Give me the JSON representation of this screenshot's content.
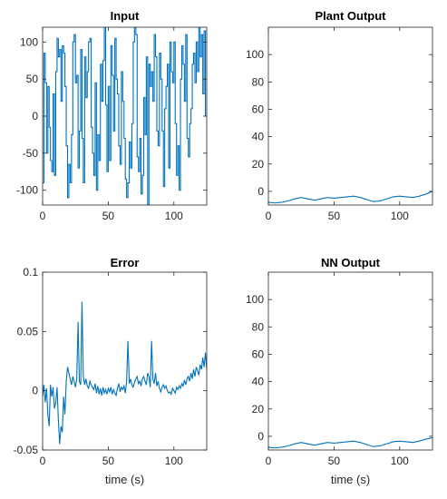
{
  "chart_data": [
    {
      "type": "line",
      "title": "Input",
      "xlabel": "",
      "ylabel": "",
      "xlim": [
        0,
        125
      ],
      "ylim": [
        -120,
        120
      ],
      "xticks": [
        "0",
        "50",
        "100"
      ],
      "xtick_values": [
        0,
        50,
        100
      ],
      "yticks": [
        "-100",
        "-50",
        "0",
        "50",
        "100"
      ],
      "ytick_values": [
        -100,
        -50,
        0,
        50,
        100
      ],
      "line_color": "#0072BD",
      "step": true,
      "series": [
        {
          "x": [
            0,
            1,
            2,
            3,
            4,
            5,
            6,
            7,
            8,
            9,
            10,
            11,
            12,
            13,
            14,
            15,
            16,
            17,
            18,
            19,
            20,
            21,
            22,
            23,
            24,
            25,
            26,
            27,
            28,
            29,
            30,
            31,
            32,
            33,
            34,
            35,
            36,
            37,
            38,
            39,
            40,
            41,
            42,
            43,
            44,
            45,
            46,
            47,
            48,
            49,
            50,
            51,
            52,
            53,
            54,
            55,
            56,
            57,
            58,
            59,
            60,
            61,
            62,
            63,
            64,
            65,
            66,
            67,
            68,
            69,
            70,
            71,
            72,
            73,
            74,
            75,
            76,
            77,
            78,
            79,
            80,
            81,
            82,
            83,
            84,
            85,
            86,
            87,
            88,
            89,
            90,
            91,
            92,
            93,
            94,
            95,
            96,
            97,
            98,
            99,
            100,
            101,
            102,
            103,
            104,
            105,
            106,
            107,
            108,
            109,
            110,
            111,
            112,
            113,
            114,
            115,
            116,
            117,
            118,
            119,
            120,
            121,
            122,
            123,
            124
          ],
          "y": [
            -90,
            85,
            45,
            -50,
            40,
            -15,
            -60,
            -75,
            30,
            -80,
            60,
            105,
            80,
            90,
            20,
            95,
            85,
            40,
            -40,
            -110,
            -65,
            -90,
            -25,
            100,
            110,
            45,
            55,
            -70,
            -20,
            90,
            -30,
            -90,
            80,
            25,
            60,
            100,
            105,
            -15,
            -50,
            -80,
            45,
            -100,
            -25,
            -60,
            70,
            20,
            75,
            120,
            15,
            -75,
            40,
            -60,
            95,
            55,
            -20,
            105,
            50,
            30,
            -40,
            -65,
            60,
            20,
            -30,
            -85,
            -110,
            -90,
            -35,
            -70,
            -10,
            100,
            120,
            110,
            -55,
            -75,
            -30,
            -105,
            -80,
            25,
            -25,
            80,
            -120,
            70,
            40,
            60,
            20,
            110,
            80,
            -20,
            -40,
            85,
            50,
            -20,
            -95,
            10,
            40,
            70,
            -70,
            100,
            60,
            45,
            100,
            -10,
            -80,
            -40,
            -100,
            50,
            95,
            70,
            20,
            110,
            -30,
            -55,
            -10,
            10,
            70,
            85,
            45,
            100,
            60,
            120,
            80,
            110,
            30,
            115,
            0
          ]
        }
      ]
    },
    {
      "type": "line",
      "title": "Plant Output",
      "xlabel": "",
      "ylabel": "",
      "xlim": [
        0,
        125
      ],
      "ylim": [
        -10,
        120
      ],
      "xticks": [
        "0",
        "50",
        "100"
      ],
      "xtick_values": [
        0,
        50,
        100
      ],
      "yticks": [
        "0",
        "20",
        "40",
        "60",
        "80",
        "100"
      ],
      "ytick_values": [
        0,
        20,
        40,
        60,
        80,
        100
      ],
      "line_color": "#0072BD",
      "step": false,
      "series": [
        {
          "x": [
            0,
            5,
            10,
            15,
            20,
            25,
            30,
            35,
            40,
            45,
            50,
            55,
            60,
            65,
            70,
            75,
            80,
            85,
            90,
            95,
            100,
            105,
            110,
            115,
            120,
            125
          ],
          "y": [
            -8,
            -8.5,
            -8,
            -7,
            -5.5,
            -4.5,
            -5.5,
            -6.5,
            -5.5,
            -4.5,
            -5,
            -4.5,
            -4,
            -3.5,
            -4.5,
            -6,
            -7.5,
            -7,
            -5.5,
            -4,
            -3.5,
            -4,
            -4.5,
            -3.5,
            -2,
            0
          ]
        }
      ]
    },
    {
      "type": "line",
      "title": "Error",
      "xlabel": "time (s)",
      "ylabel": "",
      "xlim": [
        0,
        125
      ],
      "ylim": [
        -0.05,
        0.1
      ],
      "xticks": [
        "0",
        "50",
        "100"
      ],
      "xtick_values": [
        0,
        50,
        100
      ],
      "yticks": [
        "-0.05",
        "0",
        "0.05",
        "0.1"
      ],
      "ytick_values": [
        -0.05,
        0,
        0.05,
        0.1
      ],
      "line_color": "#0072BD",
      "step": false,
      "series": [
        {
          "x": [
            0,
            1,
            2,
            3,
            4,
            5,
            6,
            7,
            8,
            9,
            10,
            11,
            12,
            13,
            14,
            15,
            16,
            17,
            18,
            19,
            20,
            21,
            22,
            23,
            24,
            25,
            26,
            27,
            28,
            29,
            30,
            31,
            32,
            33,
            34,
            35,
            36,
            37,
            38,
            39,
            40,
            41,
            42,
            43,
            44,
            45,
            46,
            47,
            48,
            49,
            50,
            51,
            52,
            53,
            54,
            55,
            56,
            57,
            58,
            59,
            60,
            61,
            62,
            63,
            64,
            65,
            66,
            67,
            68,
            69,
            70,
            71,
            72,
            73,
            74,
            75,
            76,
            77,
            78,
            79,
            80,
            81,
            82,
            83,
            84,
            85,
            86,
            87,
            88,
            89,
            90,
            91,
            92,
            93,
            94,
            95,
            96,
            97,
            98,
            99,
            100,
            101,
            102,
            103,
            104,
            105,
            106,
            107,
            108,
            109,
            110,
            111,
            112,
            113,
            114,
            115,
            116,
            117,
            118,
            119,
            120,
            121,
            122,
            123,
            124,
            125
          ],
          "y": [
            -0.005,
            0.005,
            -0.01,
            0.002,
            -0.02,
            -0.03,
            0.005,
            -0.005,
            0.003,
            -0.015,
            -0.01,
            0.003,
            -0.025,
            -0.045,
            -0.03,
            -0.035,
            -0.005,
            -0.02,
            0.008,
            0.02,
            0.015,
            0.01,
            0.005,
            0.012,
            0.008,
            0.003,
            0.01,
            0.058,
            0.008,
            0.005,
            0.075,
            0.012,
            0.005,
            0.01,
            0.004,
            0.002,
            0.008,
            0.005,
            0.003,
            0.001,
            0.006,
            -0.002,
            0.004,
            -0.003,
            0.002,
            -0.004,
            0.003,
            -0.002,
            0.001,
            -0.003,
            0.002,
            -0.001,
            0.003,
            -0.003,
            0.001,
            -0.002,
            -0.004,
            0.002,
            0.006,
            -0.001,
            0.003,
            0.001,
            0.004,
            -0.002,
            0.008,
            0.042,
            0.006,
            0.01,
            0.005,
            0.003,
            0.007,
            0.01,
            0.012,
            0.006,
            0.008,
            0.004,
            0.01,
            0.012,
            0.008,
            0.005,
            0.015,
            0.012,
            0.003,
            0.042,
            0.01,
            0.006,
            0.015,
            0.004,
            0.008,
            0.002,
            -0.001,
            0.003,
            0.005,
            0.002,
            0.004,
            0.0,
            -0.002,
            -0.001,
            -0.003,
            0.002,
            0.0,
            -0.002,
            0.003,
            0.001,
            0.004,
            0.002,
            0.006,
            0.004,
            0.009,
            0.005,
            0.01,
            0.012,
            0.008,
            0.015,
            0.01,
            0.018,
            0.012,
            0.02,
            0.017,
            0.013,
            0.022,
            0.018,
            0.028,
            0.02,
            0.032,
            0.018
          ]
        }
      ]
    },
    {
      "type": "line",
      "title": "NN Output",
      "xlabel": "time (s)",
      "ylabel": "",
      "xlim": [
        0,
        125
      ],
      "ylim": [
        -10,
        120
      ],
      "xticks": [
        "0",
        "50",
        "100"
      ],
      "xtick_values": [
        0,
        50,
        100
      ],
      "yticks": [
        "0",
        "20",
        "40",
        "60",
        "80",
        "100"
      ],
      "ytick_values": [
        0,
        20,
        40,
        60,
        80,
        100
      ],
      "line_color": "#0072BD",
      "step": false,
      "series": [
        {
          "x": [
            0,
            5,
            10,
            15,
            20,
            25,
            30,
            35,
            40,
            45,
            50,
            55,
            60,
            65,
            70,
            75,
            80,
            85,
            90,
            95,
            100,
            105,
            110,
            115,
            120,
            125
          ],
          "y": [
            -8,
            -8.5,
            -8,
            -7,
            -5.5,
            -4.5,
            -5.5,
            -6.5,
            -5.5,
            -4.5,
            -5,
            -4.5,
            -4,
            -3.5,
            -4.5,
            -6,
            -7.5,
            -7,
            -5.5,
            -4,
            -3.5,
            -4,
            -4.5,
            -3.5,
            -2,
            -1
          ]
        }
      ]
    }
  ]
}
